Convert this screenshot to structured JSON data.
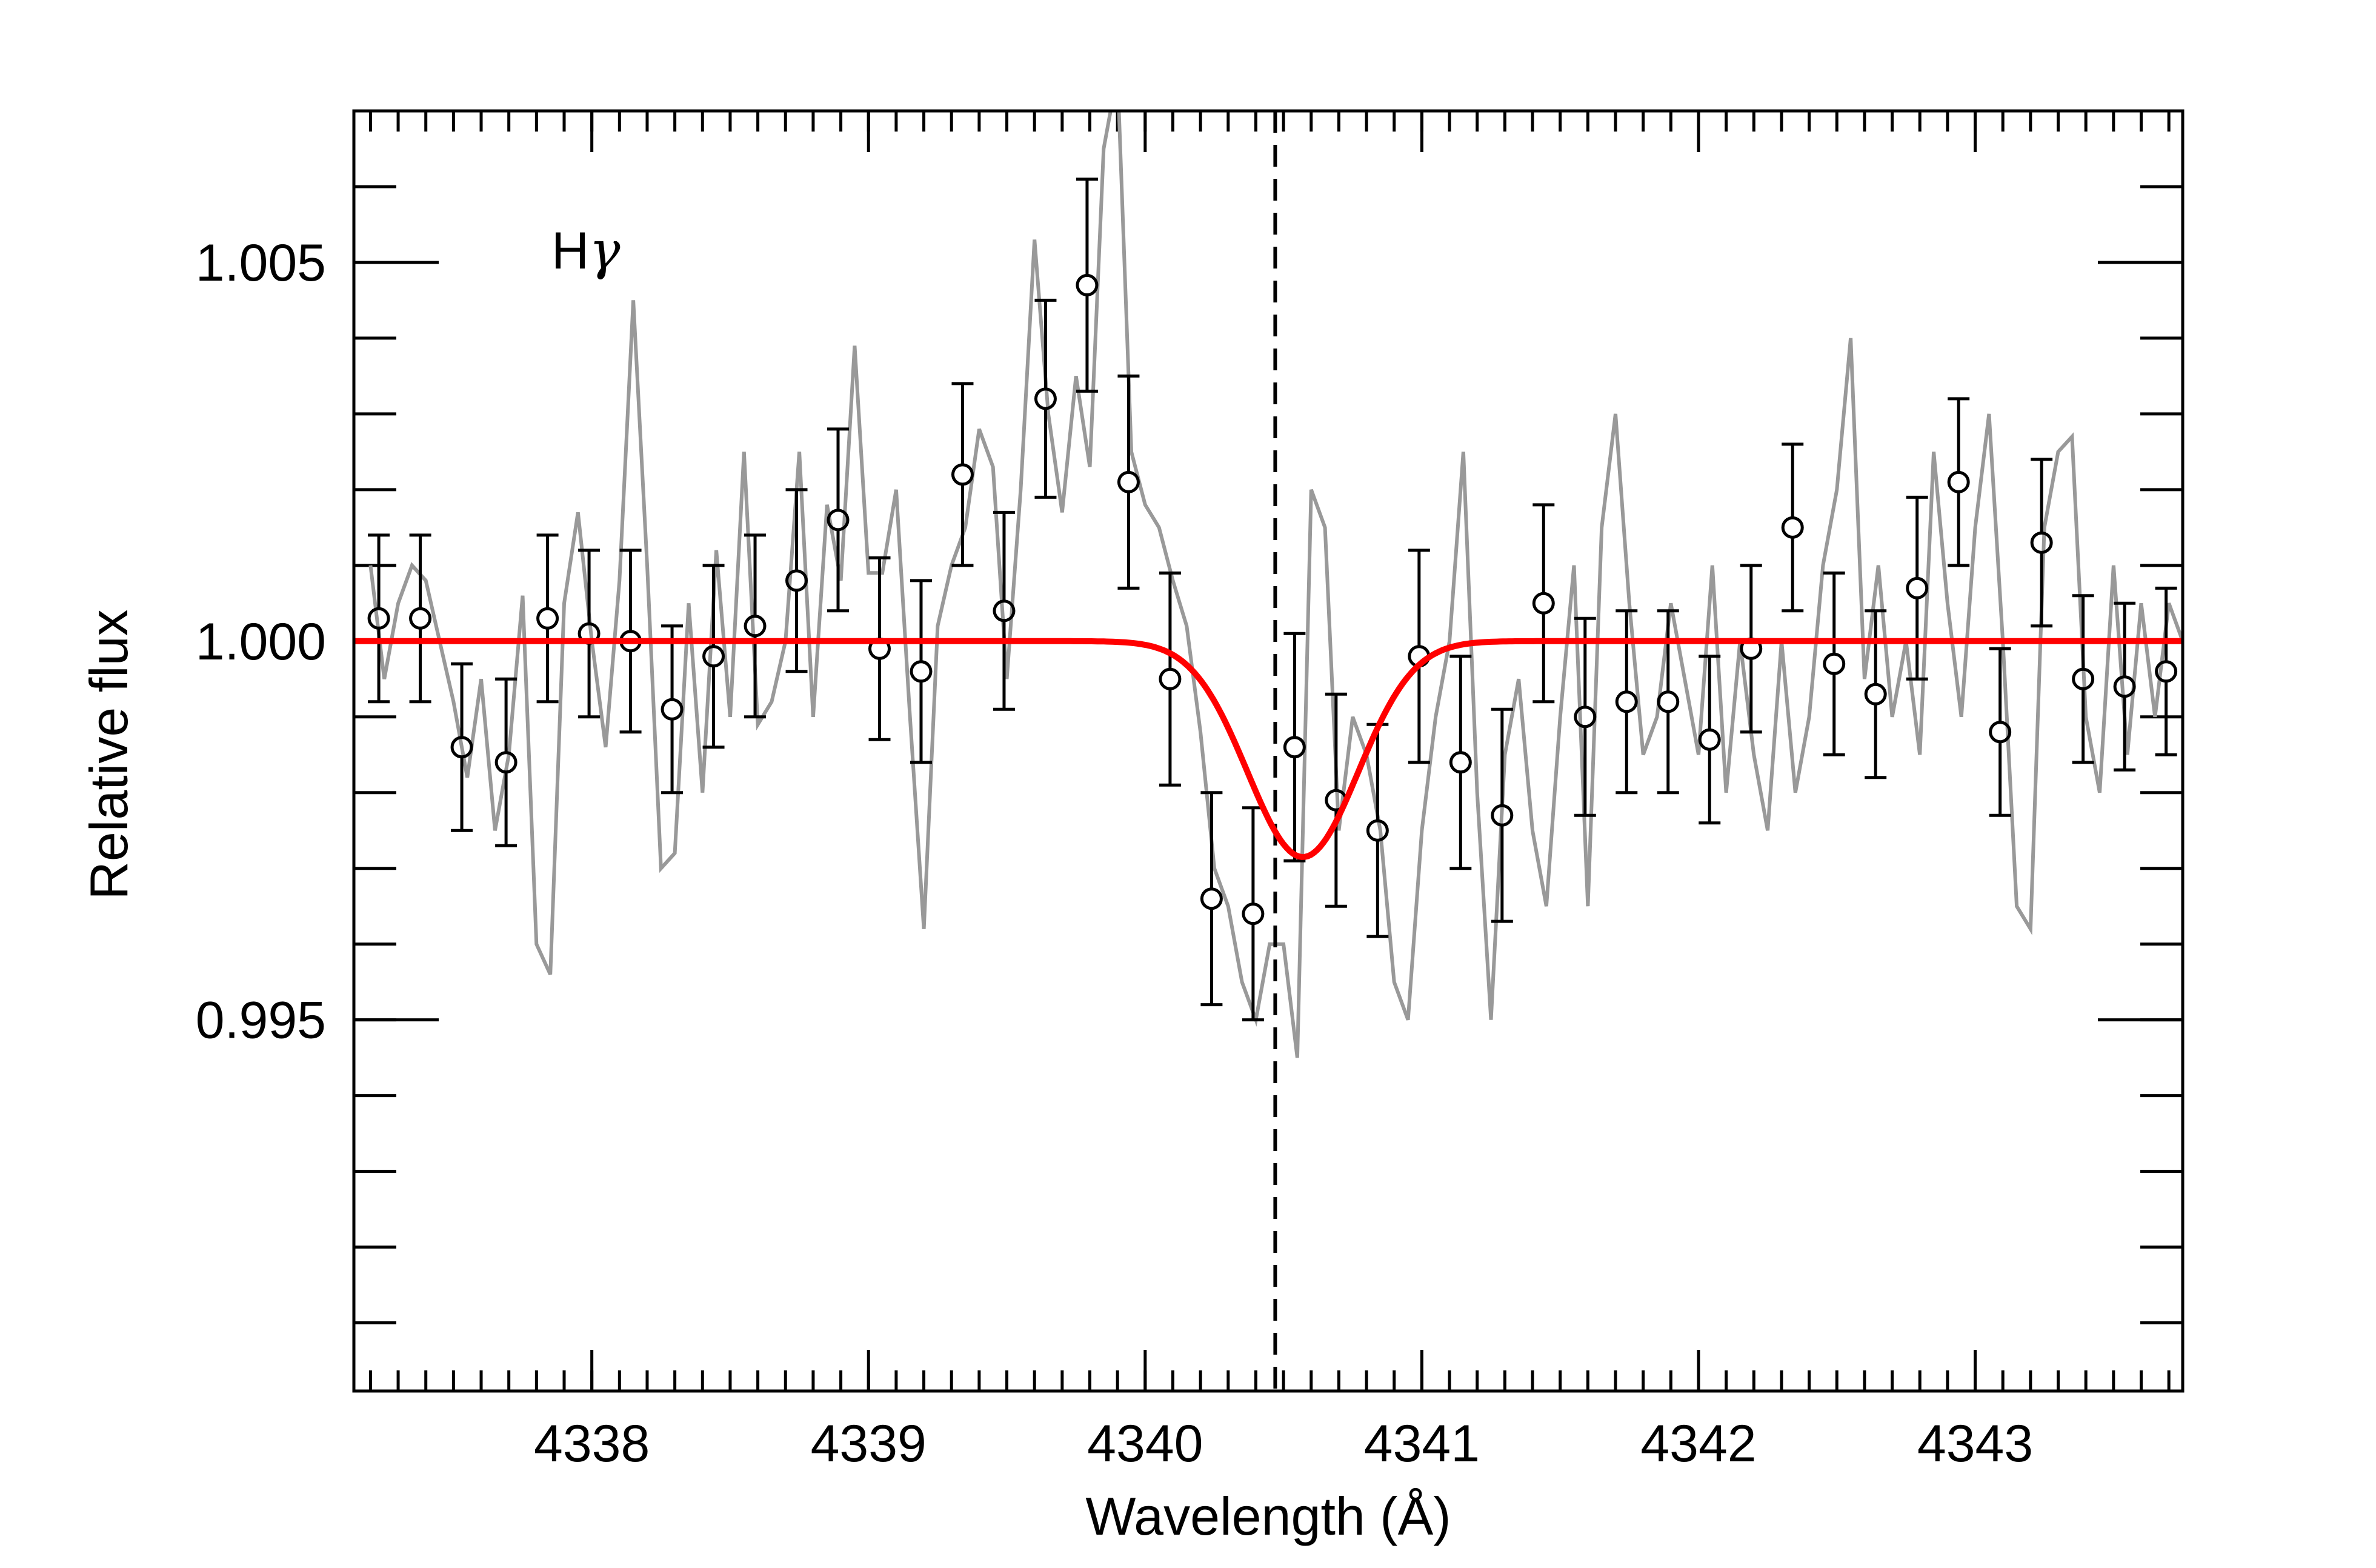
{
  "chart_data": {
    "type": "scatter",
    "xlabel": "Wavelength (Å)",
    "ylabel": "Relative flux",
    "xlim": [
      4337.14,
      4343.75
    ],
    "ylim": [
      0.9901,
      1.007
    ],
    "x_ticks": [
      4338,
      4339,
      4340,
      4341,
      4342,
      4343
    ],
    "x_tick_labels": [
      "4338",
      "4339",
      "4340",
      "4341",
      "4342",
      "4343"
    ],
    "y_ticks": [
      0.995,
      1.0,
      1.005
    ],
    "y_tick_labels": [
      "0.995",
      "1.000",
      "1.005"
    ],
    "x_minor_step": 0.1,
    "y_minor_step": 0.001,
    "grid": false,
    "annotation": {
      "text": "H",
      "greek": "γ",
      "x": 4337.98,
      "y": 1.005
    },
    "reference_line": {
      "x": 4340.47,
      "style": "dashed",
      "color": "#000000"
    },
    "colors": {
      "raw": "#999999",
      "model": "#ff0000",
      "binned": "#000000"
    },
    "series": [
      {
        "role": "raw",
        "x": [
          4337.2,
          4337.25,
          4337.3,
          4337.35,
          4337.4,
          4337.45,
          4337.5,
          4337.55,
          4337.6,
          4337.65,
          4337.7,
          4337.75,
          4337.8,
          4337.85,
          4337.9,
          4337.95,
          4338.0,
          4338.05,
          4338.1,
          4338.15,
          4338.2,
          4338.25,
          4338.3,
          4338.35,
          4338.4,
          4338.45,
          4338.5,
          4338.55,
          4338.6,
          4338.65,
          4338.7,
          4338.75,
          4338.8,
          4338.85,
          4338.9,
          4338.95,
          4339.0,
          4339.05,
          4339.1,
          4339.15,
          4339.2,
          4339.25,
          4339.3,
          4339.35,
          4339.4,
          4339.45,
          4339.5,
          4339.55,
          4339.6,
          4339.65,
          4339.7,
          4339.75,
          4339.8,
          4339.85,
          4339.9,
          4339.95,
          4340.0,
          4340.05,
          4340.1,
          4340.15,
          4340.2,
          4340.25,
          4340.3,
          4340.35,
          4340.4,
          4340.45,
          4340.5,
          4340.55,
          4340.6,
          4340.65,
          4340.7,
          4340.75,
          4340.8,
          4340.85,
          4340.9,
          4340.95,
          4341.0,
          4341.05,
          4341.1,
          4341.15,
          4341.2,
          4341.25,
          4341.3,
          4341.35,
          4341.4,
          4341.45,
          4341.5,
          4341.55,
          4341.6,
          4341.65,
          4341.7,
          4341.75,
          4341.8,
          4341.85,
          4341.9,
          4341.95,
          4342.0,
          4342.05,
          4342.1,
          4342.15,
          4342.2,
          4342.25,
          4342.3,
          4342.35,
          4342.4,
          4342.45,
          4342.5,
          4342.55,
          4342.6,
          4342.65,
          4342.7,
          4342.75,
          4342.8,
          4342.85,
          4342.9,
          4342.95,
          4343.0,
          4343.05,
          4343.1,
          4343.15,
          4343.2,
          4343.25,
          4343.3,
          4343.35,
          4343.4,
          4343.45,
          4343.5,
          4343.55,
          4343.6,
          4343.65,
          4343.7,
          4343.75
        ],
        "y": [
          1.001,
          0.9995,
          1.0005,
          1.001,
          1.0008,
          1.0,
          0.9992,
          0.9982,
          0.9995,
          0.9975,
          0.9985,
          1.0006,
          0.996,
          0.9956,
          1.0005,
          1.0017,
          1.0,
          0.9986,
          1.0008,
          1.0045,
          1.001,
          0.997,
          0.9972,
          1.0005,
          0.998,
          1.0012,
          0.999,
          1.0025,
          0.9989,
          0.9992,
          1.0,
          1.0025,
          0.999,
          1.0018,
          1.0008,
          1.0039,
          1.0009,
          1.0009,
          1.002,
          0.999,
          0.9962,
          1.0002,
          1.001,
          1.0015,
          1.0028,
          1.0023,
          0.9995,
          1.002,
          1.0053,
          1.003,
          1.0017,
          1.0035,
          1.0023,
          1.0065,
          1.0075,
          1.0025,
          1.0018,
          1.0015,
          1.0008,
          1.0002,
          0.9988,
          0.997,
          0.9965,
          0.9955,
          0.995,
          0.996,
          0.996,
          0.9945,
          1.002,
          1.0015,
          0.9975,
          0.999,
          0.9985,
          0.9975,
          0.9955,
          0.995,
          0.9975,
          0.999,
          1.0,
          1.0025,
          0.998,
          0.995,
          0.9985,
          0.9995,
          0.9975,
          0.9965,
          0.999,
          1.001,
          0.9965,
          1.0015,
          1.003,
          1.0005,
          0.9985,
          0.999,
          1.0005,
          0.9995,
          0.9985,
          1.001,
          0.998,
          1.0,
          0.9985,
          0.9975,
          1.0,
          0.998,
          0.999,
          1.001,
          1.002,
          1.004,
          0.9995,
          1.001,
          0.999,
          1.0,
          0.9985,
          1.0025,
          1.0005,
          0.999,
          1.0015,
          1.003,
          1.0,
          0.9965,
          0.9962,
          1.0015,
          1.0025,
          1.0027,
          0.999,
          0.998,
          1.001,
          0.9985,
          1.0005,
          0.999,
          1.0005,
          1.0
        ]
      },
      {
        "role": "model",
        "function": "gaussian",
        "continuum": 1.0,
        "depth": 0.00285,
        "center": 4340.57,
        "sigma": 0.2
      },
      {
        "role": "binned",
        "x": [
          4337.23,
          4337.38,
          4337.53,
          4337.69,
          4337.84,
          4337.99,
          4338.14,
          4338.29,
          4338.44,
          4338.59,
          4338.74,
          4338.89,
          4339.04,
          4339.19,
          4339.34,
          4339.49,
          4339.64,
          4339.79,
          4339.94,
          4340.09,
          4340.24,
          4340.39,
          4340.54,
          4340.69,
          4340.84,
          4340.99,
          4341.14,
          4341.29,
          4341.44,
          4341.59,
          4341.74,
          4341.89,
          4342.04,
          4342.19,
          4342.34,
          4342.49,
          4342.64,
          4342.79,
          4342.94,
          4343.09,
          4343.24,
          4343.39,
          4343.54,
          4343.69
        ],
        "y": [
          1.0003,
          1.0003,
          0.9986,
          0.9984,
          1.0003,
          1.0001,
          1.0,
          0.9991,
          0.9998,
          1.0002,
          1.0008,
          1.0016,
          0.9999,
          0.9996,
          1.0022,
          1.0004,
          1.0032,
          1.0047,
          1.0021,
          0.9995,
          0.9966,
          0.9964,
          0.9986,
          0.9979,
          0.9975,
          0.9998,
          0.9984,
          0.9977,
          1.0005,
          0.999,
          0.9992,
          0.9992,
          0.9987,
          0.9999,
          1.0015,
          0.9997,
          0.9993,
          1.0007,
          1.0021,
          0.9988,
          1.0013,
          0.9995,
          0.9994,
          0.9996
        ],
        "err": [
          0.0011,
          0.0011,
          0.0011,
          0.0011,
          0.0011,
          0.0011,
          0.0012,
          0.0011,
          0.0012,
          0.0012,
          0.0012,
          0.0012,
          0.0012,
          0.0012,
          0.0012,
          0.0013,
          0.0013,
          0.0014,
          0.0014,
          0.0014,
          0.0014,
          0.0014,
          0.0015,
          0.0014,
          0.0014,
          0.0014,
          0.0014,
          0.0014,
          0.0013,
          0.0013,
          0.0012,
          0.0012,
          0.0011,
          0.0011,
          0.0011,
          0.0012,
          0.0011,
          0.0012,
          0.0011,
          0.0011,
          0.0011,
          0.0011,
          0.0011,
          0.0011
        ]
      }
    ]
  }
}
